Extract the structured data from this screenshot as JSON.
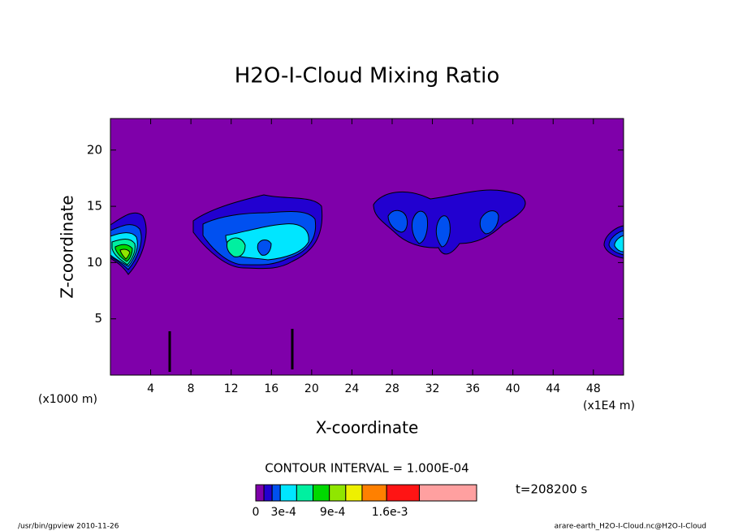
{
  "chart_data": {
    "type": "contour",
    "title": "H2O-I-Cloud Mixing Ratio",
    "x_label": "X-coordinate",
    "y_label": "Z-coordinate",
    "x_unit_left": "(x1000 m)",
    "x_unit_right": "(x1E4 m)",
    "xlim": [
      0,
      51
    ],
    "ylim": [
      0,
      22.8
    ],
    "xticks": [
      4,
      8,
      12,
      16,
      20,
      24,
      28,
      32,
      36,
      40,
      44,
      48
    ],
    "yticks": [
      5,
      10,
      15,
      20
    ],
    "contour_interval": "CONTOUR INTERVAL = 1.000E-04",
    "time": "t=208200 s",
    "colorbar": {
      "levels": [
        0,
        0.0001,
        0.0002,
        0.0003,
        0.0005,
        0.0007,
        0.0009,
        0.0011,
        0.0013,
        0.0016,
        0.002,
        0.0027
      ],
      "colors": [
        "#7f00aa",
        "#2200d0",
        "#0050f0",
        "#00e6ff",
        "#00f0a0",
        "#00d800",
        "#90e600",
        "#eef000",
        "#ff8000",
        "#ff1414",
        "#ffa0a0"
      ],
      "ticks": [
        0,
        {
          "value": 0.0003,
          "label": "3e-4"
        },
        {
          "value": 0.0009,
          "label": "9e-4"
        },
        {
          "value": 0.0016,
          "label": "1.6e-3"
        }
      ]
    },
    "footer_left": "/usr/bin/gpview  2010-11-26",
    "footer_right": "arare-earth_H2O-I-Cloud.nc@H2O-I-Cloud"
  }
}
